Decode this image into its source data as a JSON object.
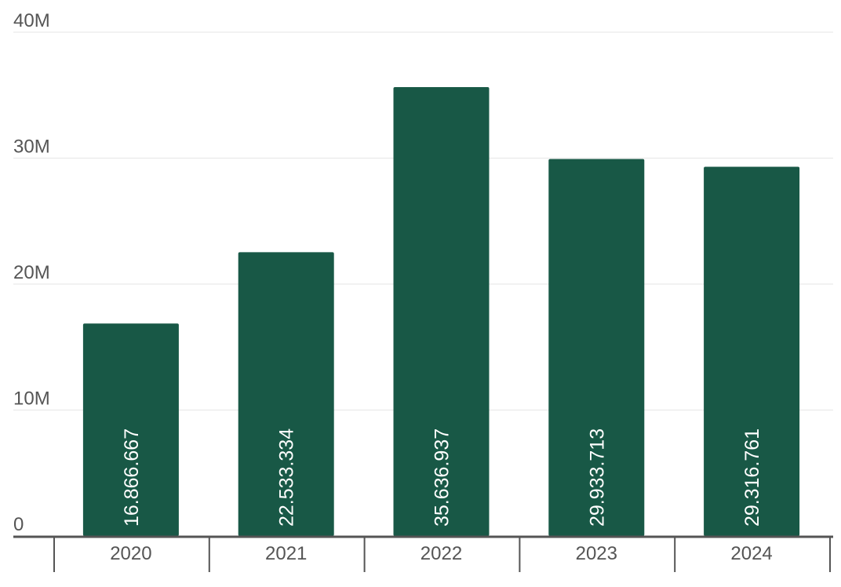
{
  "chart_data": {
    "type": "bar",
    "title": "",
    "xlabel": "",
    "ylabel": "",
    "categories": [
      "2020",
      "2021",
      "2022",
      "2023",
      "2024"
    ],
    "values": [
      16866667,
      22533334,
      35636937,
      29933713,
      29316761
    ],
    "value_labels": [
      "16.866.667",
      "22.533.334",
      "35.636.937",
      "29.933.713",
      "29.316.761"
    ],
    "ylim": [
      0,
      40000000
    ],
    "yticks": [
      0,
      10000000,
      20000000,
      30000000,
      40000000
    ],
    "ytick_labels": [
      "0",
      "10M",
      "20M",
      "30M",
      "40M"
    ],
    "grid": true,
    "legend": "none",
    "colors": {
      "bar": "#185846",
      "grid": "#e6e6e6",
      "axis": "#555555",
      "label": "#555555",
      "data_label": "#ffffff"
    }
  }
}
